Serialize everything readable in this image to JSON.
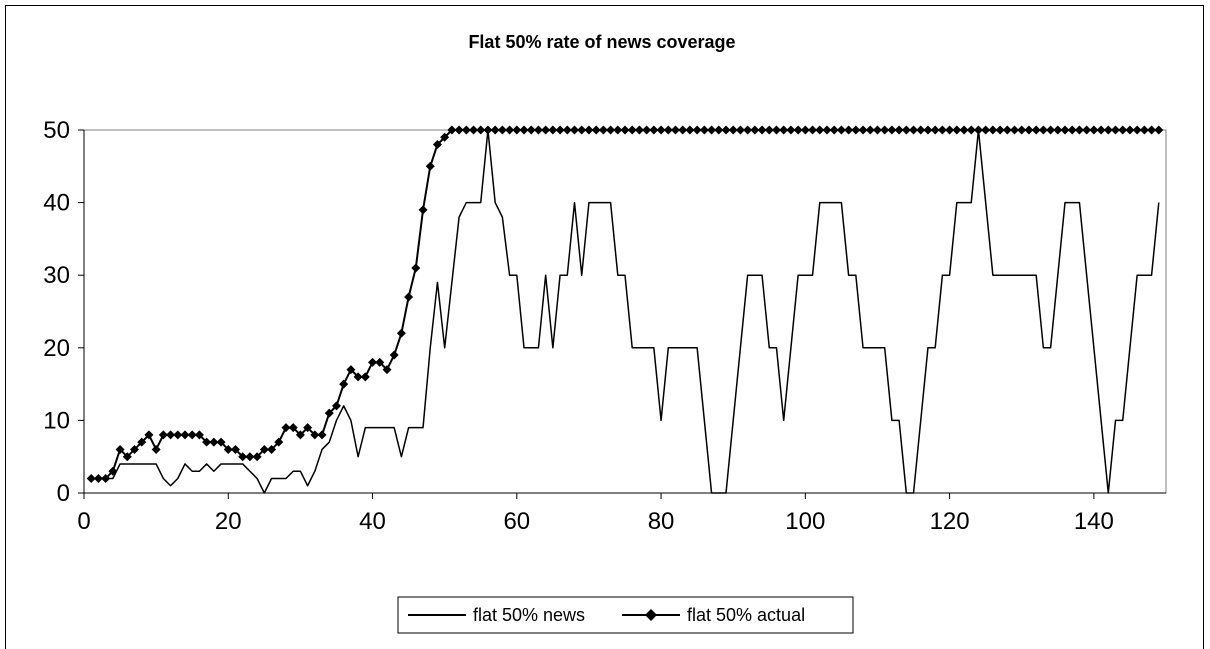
{
  "chart_data": {
    "type": "line",
    "title": "Flat 50% rate of news coverage",
    "xlabel": "",
    "ylabel": "",
    "xlim": [
      0,
      150
    ],
    "ylim": [
      0,
      50
    ],
    "xticks": [
      0,
      20,
      40,
      60,
      80,
      100,
      120,
      140
    ],
    "yticks": [
      0,
      10,
      20,
      30,
      40,
      50
    ],
    "grid": false,
    "legend_position": "bottom",
    "series": [
      {
        "name": "flat 50% news",
        "color": "#000000",
        "marker": "none",
        "points": [
          [
            1,
            2
          ],
          [
            2,
            2
          ],
          [
            3,
            2
          ],
          [
            4,
            2
          ],
          [
            5,
            4
          ],
          [
            6,
            4
          ],
          [
            7,
            4
          ],
          [
            8,
            4
          ],
          [
            9,
            4
          ],
          [
            10,
            4
          ],
          [
            11,
            2
          ],
          [
            12,
            1
          ],
          [
            13,
            2
          ],
          [
            14,
            4
          ],
          [
            15,
            3
          ],
          [
            16,
            3
          ],
          [
            17,
            4
          ],
          [
            18,
            3
          ],
          [
            19,
            4
          ],
          [
            20,
            4
          ],
          [
            21,
            4
          ],
          [
            22,
            4
          ],
          [
            23,
            3
          ],
          [
            24,
            2
          ],
          [
            25,
            0
          ],
          [
            26,
            2
          ],
          [
            27,
            2
          ],
          [
            28,
            2
          ],
          [
            29,
            3
          ],
          [
            30,
            3
          ],
          [
            31,
            1
          ],
          [
            32,
            3
          ],
          [
            33,
            6
          ],
          [
            34,
            7
          ],
          [
            35,
            10
          ],
          [
            36,
            12
          ],
          [
            37,
            10
          ],
          [
            38,
            5
          ],
          [
            39,
            9
          ],
          [
            40,
            9
          ],
          [
            41,
            9
          ],
          [
            42,
            9
          ],
          [
            43,
            9
          ],
          [
            44,
            5
          ],
          [
            45,
            9
          ],
          [
            46,
            9
          ],
          [
            47,
            9
          ],
          [
            48,
            20
          ],
          [
            49,
            29
          ],
          [
            50,
            20
          ],
          [
            51,
            29
          ],
          [
            52,
            38
          ],
          [
            53,
            40
          ],
          [
            54,
            40
          ],
          [
            55,
            40
          ],
          [
            56,
            50
          ],
          [
            57,
            40
          ],
          [
            58,
            38
          ],
          [
            59,
            30
          ],
          [
            60,
            30
          ],
          [
            61,
            20
          ],
          [
            62,
            20
          ],
          [
            63,
            20
          ],
          [
            64,
            30
          ],
          [
            65,
            20
          ],
          [
            66,
            30
          ],
          [
            67,
            30
          ],
          [
            68,
            40
          ],
          [
            69,
            30
          ],
          [
            70,
            40
          ],
          [
            71,
            40
          ],
          [
            72,
            40
          ],
          [
            73,
            40
          ],
          [
            74,
            30
          ],
          [
            75,
            30
          ],
          [
            76,
            20
          ],
          [
            77,
            20
          ],
          [
            78,
            20
          ],
          [
            79,
            20
          ],
          [
            80,
            10
          ],
          [
            81,
            20
          ],
          [
            82,
            20
          ],
          [
            83,
            20
          ],
          [
            84,
            20
          ],
          [
            85,
            20
          ],
          [
            86,
            10
          ],
          [
            87,
            0
          ],
          [
            88,
            0
          ],
          [
            89,
            0
          ],
          [
            90,
            10
          ],
          [
            91,
            20
          ],
          [
            92,
            30
          ],
          [
            93,
            30
          ],
          [
            94,
            30
          ],
          [
            95,
            20
          ],
          [
            96,
            20
          ],
          [
            97,
            10
          ],
          [
            98,
            20
          ],
          [
            99,
            30
          ],
          [
            100,
            30
          ],
          [
            101,
            30
          ],
          [
            102,
            40
          ],
          [
            103,
            40
          ],
          [
            104,
            40
          ],
          [
            105,
            40
          ],
          [
            106,
            30
          ],
          [
            107,
            30
          ],
          [
            108,
            20
          ],
          [
            109,
            20
          ],
          [
            110,
            20
          ],
          [
            111,
            20
          ],
          [
            112,
            10
          ],
          [
            113,
            10
          ],
          [
            114,
            0
          ],
          [
            115,
            0
          ],
          [
            116,
            10
          ],
          [
            117,
            20
          ],
          [
            118,
            20
          ],
          [
            119,
            30
          ],
          [
            120,
            30
          ],
          [
            121,
            40
          ],
          [
            122,
            40
          ],
          [
            123,
            40
          ],
          [
            124,
            50
          ],
          [
            125,
            40
          ],
          [
            126,
            30
          ],
          [
            127,
            30
          ],
          [
            128,
            30
          ],
          [
            129,
            30
          ],
          [
            130,
            30
          ],
          [
            131,
            30
          ],
          [
            132,
            30
          ],
          [
            133,
            20
          ],
          [
            134,
            20
          ],
          [
            135,
            30
          ],
          [
            136,
            40
          ],
          [
            137,
            40
          ],
          [
            138,
            40
          ],
          [
            139,
            30
          ],
          [
            140,
            20
          ],
          [
            141,
            10
          ],
          [
            142,
            0
          ],
          [
            143,
            10
          ],
          [
            144,
            10
          ],
          [
            145,
            20
          ],
          [
            146,
            30
          ],
          [
            147,
            30
          ],
          [
            148,
            30
          ],
          [
            149,
            40
          ]
        ]
      },
      {
        "name": "flat 50% actual",
        "color": "#000000",
        "marker": "diamond",
        "points": [
          [
            1,
            2
          ],
          [
            2,
            2
          ],
          [
            3,
            2
          ],
          [
            4,
            3
          ],
          [
            5,
            6
          ],
          [
            6,
            5
          ],
          [
            7,
            6
          ],
          [
            8,
            7
          ],
          [
            9,
            8
          ],
          [
            10,
            6
          ],
          [
            11,
            8
          ],
          [
            12,
            8
          ],
          [
            13,
            8
          ],
          [
            14,
            8
          ],
          [
            15,
            8
          ],
          [
            16,
            8
          ],
          [
            17,
            7
          ],
          [
            18,
            7
          ],
          [
            19,
            7
          ],
          [
            20,
            6
          ],
          [
            21,
            6
          ],
          [
            22,
            5
          ],
          [
            23,
            5
          ],
          [
            24,
            5
          ],
          [
            25,
            6
          ],
          [
            26,
            6
          ],
          [
            27,
            7
          ],
          [
            28,
            9
          ],
          [
            29,
            9
          ],
          [
            30,
            8
          ],
          [
            31,
            9
          ],
          [
            32,
            8
          ],
          [
            33,
            8
          ],
          [
            34,
            11
          ],
          [
            35,
            12
          ],
          [
            36,
            15
          ],
          [
            37,
            17
          ],
          [
            38,
            16
          ],
          [
            39,
            16
          ],
          [
            40,
            18
          ],
          [
            41,
            18
          ],
          [
            42,
            17
          ],
          [
            43,
            19
          ],
          [
            44,
            22
          ],
          [
            45,
            27
          ],
          [
            46,
            31
          ],
          [
            47,
            39
          ],
          [
            48,
            45
          ],
          [
            49,
            48
          ],
          [
            50,
            49
          ],
          [
            51,
            50
          ],
          [
            52,
            50
          ],
          [
            53,
            50
          ],
          [
            54,
            50
          ],
          [
            55,
            50
          ],
          [
            56,
            50
          ],
          [
            57,
            50
          ],
          [
            58,
            50
          ],
          [
            59,
            50
          ],
          [
            60,
            50
          ],
          [
            61,
            50
          ],
          [
            62,
            50
          ],
          [
            63,
            50
          ],
          [
            64,
            50
          ],
          [
            65,
            50
          ],
          [
            66,
            50
          ],
          [
            67,
            50
          ],
          [
            68,
            50
          ],
          [
            69,
            50
          ],
          [
            70,
            50
          ],
          [
            71,
            50
          ],
          [
            72,
            50
          ],
          [
            73,
            50
          ],
          [
            74,
            50
          ],
          [
            75,
            50
          ],
          [
            76,
            50
          ],
          [
            77,
            50
          ],
          [
            78,
            50
          ],
          [
            79,
            50
          ],
          [
            80,
            50
          ],
          [
            81,
            50
          ],
          [
            82,
            50
          ],
          [
            83,
            50
          ],
          [
            84,
            50
          ],
          [
            85,
            50
          ],
          [
            86,
            50
          ],
          [
            87,
            50
          ],
          [
            88,
            50
          ],
          [
            89,
            50
          ],
          [
            90,
            50
          ],
          [
            91,
            50
          ],
          [
            92,
            50
          ],
          [
            93,
            50
          ],
          [
            94,
            50
          ],
          [
            95,
            50
          ],
          [
            96,
            50
          ],
          [
            97,
            50
          ],
          [
            98,
            50
          ],
          [
            99,
            50
          ],
          [
            100,
            50
          ],
          [
            101,
            50
          ],
          [
            102,
            50
          ],
          [
            103,
            50
          ],
          [
            104,
            50
          ],
          [
            105,
            50
          ],
          [
            106,
            50
          ],
          [
            107,
            50
          ],
          [
            108,
            50
          ],
          [
            109,
            50
          ],
          [
            110,
            50
          ],
          [
            111,
            50
          ],
          [
            112,
            50
          ],
          [
            113,
            50
          ],
          [
            114,
            50
          ],
          [
            115,
            50
          ],
          [
            116,
            50
          ],
          [
            117,
            50
          ],
          [
            118,
            50
          ],
          [
            119,
            50
          ],
          [
            120,
            50
          ],
          [
            121,
            50
          ],
          [
            122,
            50
          ],
          [
            123,
            50
          ],
          [
            124,
            50
          ],
          [
            125,
            50
          ],
          [
            126,
            50
          ],
          [
            127,
            50
          ],
          [
            128,
            50
          ],
          [
            129,
            50
          ],
          [
            130,
            50
          ],
          [
            131,
            50
          ],
          [
            132,
            50
          ],
          [
            133,
            50
          ],
          [
            134,
            50
          ],
          [
            135,
            50
          ],
          [
            136,
            50
          ],
          [
            137,
            50
          ],
          [
            138,
            50
          ],
          [
            139,
            50
          ],
          [
            140,
            50
          ],
          [
            141,
            50
          ],
          [
            142,
            50
          ],
          [
            143,
            50
          ],
          [
            144,
            50
          ],
          [
            145,
            50
          ],
          [
            146,
            50
          ],
          [
            147,
            50
          ],
          [
            148,
            50
          ],
          [
            149,
            50
          ]
        ]
      }
    ]
  }
}
